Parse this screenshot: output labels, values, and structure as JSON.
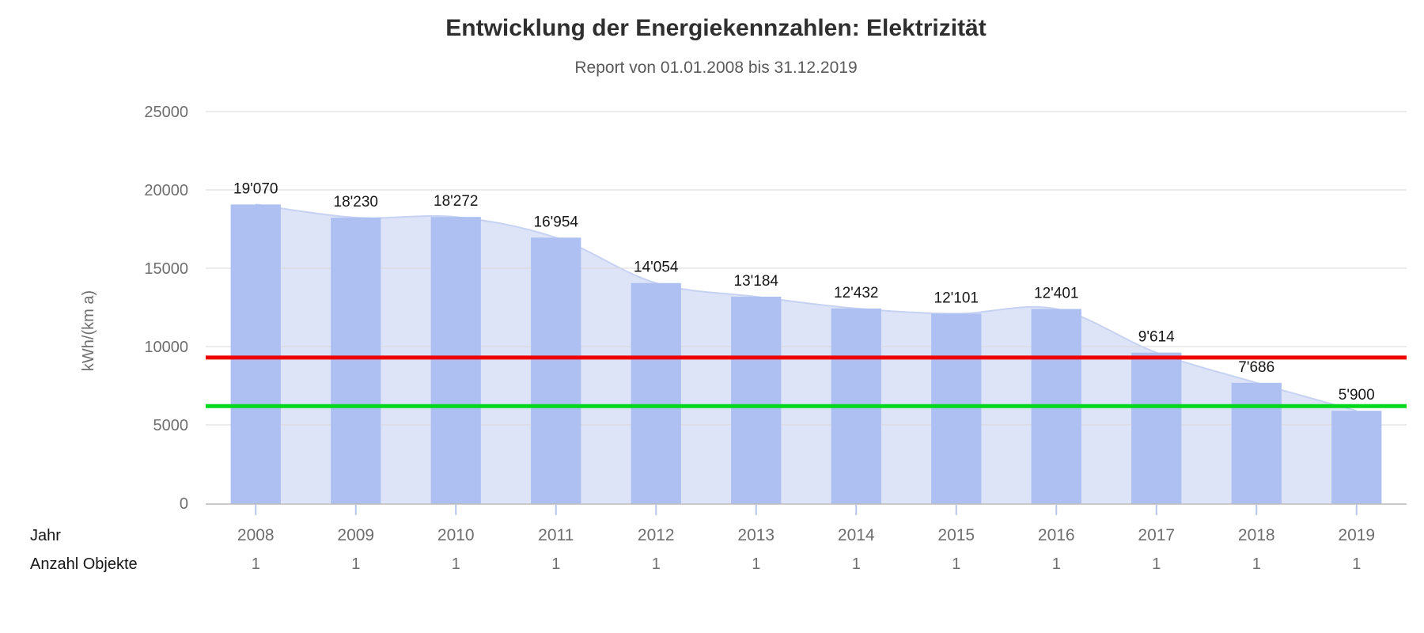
{
  "chart_data": {
    "type": "bar",
    "title": "Entwicklung der Energiekennzahlen: Elektrizität",
    "subtitle": "Report von 01.01.2008 bis 31.12.2019",
    "ylabel": "kWh/(km a)",
    "ylim": [
      0,
      25000
    ],
    "ytick_step": 5000,
    "yticks": [
      0,
      5000,
      10000,
      15000,
      20000,
      25000
    ],
    "grid": true,
    "legend_position": "none",
    "categories": [
      "2008",
      "2009",
      "2010",
      "2011",
      "2012",
      "2013",
      "2014",
      "2015",
      "2016",
      "2017",
      "2018",
      "2019"
    ],
    "series": [
      {
        "name": "Energiekennzahl Säulen",
        "type": "column",
        "color": "#adc0f1",
        "values": [
          19070,
          18230,
          18272,
          16954,
          14054,
          13184,
          12432,
          12101,
          12401,
          9614,
          7686,
          5900
        ]
      },
      {
        "name": "Energiekennzahl Fläche",
        "type": "area",
        "fill": "#dde4f8",
        "stroke": "#c7d2f2",
        "values": [
          19070,
          18230,
          18272,
          16954,
          14054,
          13184,
          12432,
          12101,
          12401,
          9614,
          7686,
          5900
        ]
      }
    ],
    "value_labels": [
      "19'070",
      "18'230",
      "18'272",
      "16'954",
      "14'054",
      "13'184",
      "12'432",
      "12'101",
      "12'401",
      "9'614",
      "7'686",
      "5'900"
    ],
    "reference_lines": [
      {
        "id": "limit-line-red",
        "color": "#ee0000",
        "value": 9300
      },
      {
        "id": "target-line-green",
        "color": "#00d81e",
        "value": 6200
      }
    ],
    "x_rows": {
      "jahr_label": "Jahr",
      "anzahl_label": "Anzahl Objekte",
      "anzahl_values": [
        "1",
        "1",
        "1",
        "1",
        "1",
        "1",
        "1",
        "1",
        "1",
        "1",
        "1",
        "1"
      ]
    }
  },
  "colors": {
    "grid": "#d9d9d9",
    "axis": "#b9b9b9",
    "xtick": "#b8c6ea",
    "text_muted": "#6e6e6e",
    "text_dark": "#161616",
    "title": "#2f2f2f",
    "subtitle": "#5a5a5a"
  }
}
